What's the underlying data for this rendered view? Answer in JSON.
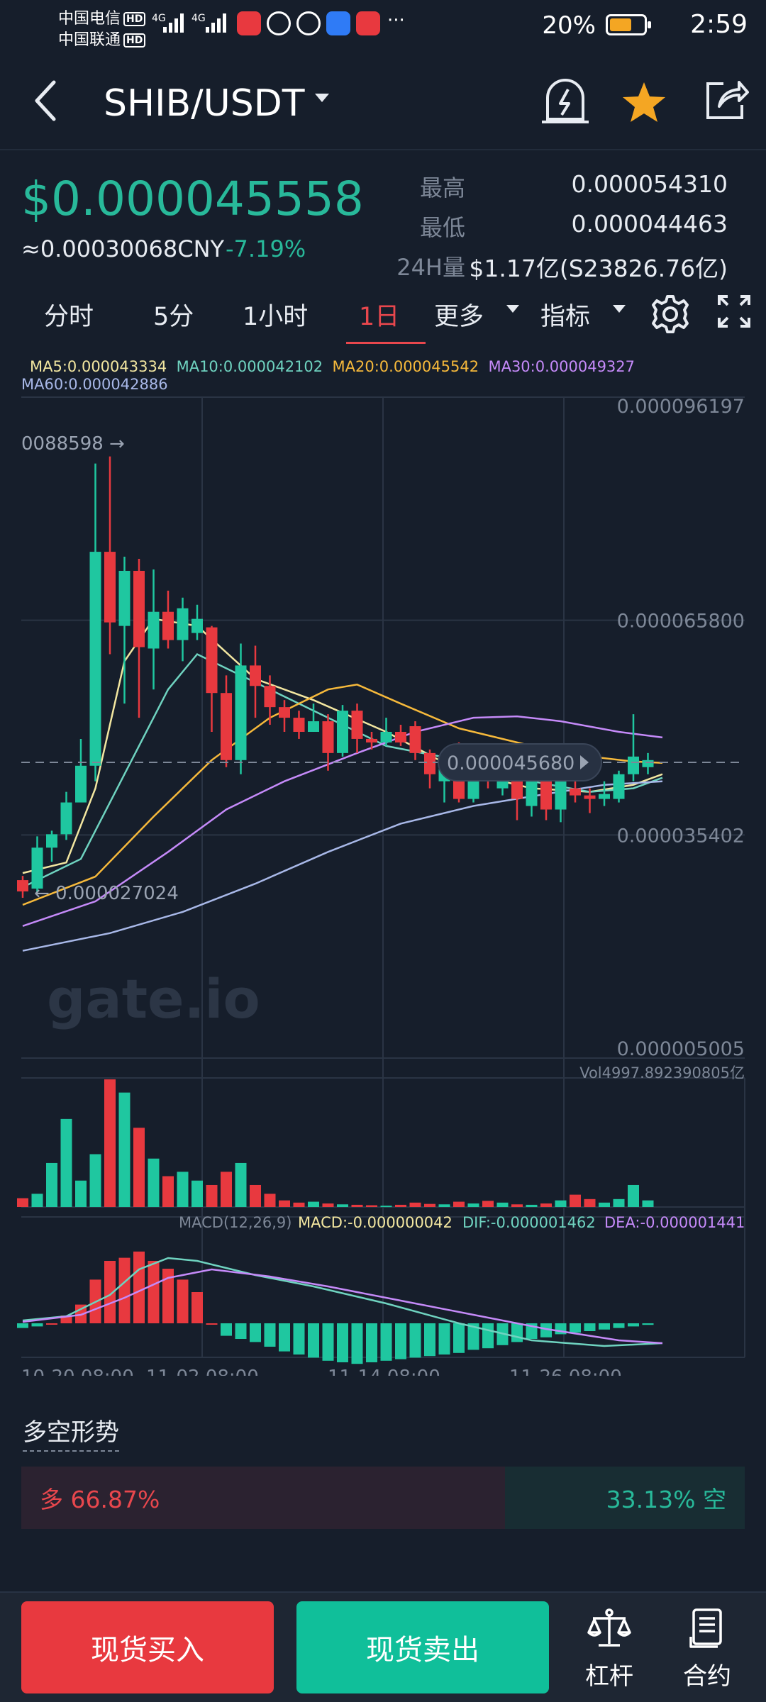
{
  "status_bar": {
    "carrier1": "中国电信",
    "carrier2": "中国联通",
    "hd": "HD",
    "network": "4G",
    "more": "···",
    "battery": "20%",
    "time": "2:59"
  },
  "header": {
    "pair": "SHIB/USDT",
    "icons": [
      "back-icon",
      "price-alert-icon",
      "favorite-star-icon",
      "share-icon"
    ],
    "star_color": "#f4a623"
  },
  "price": {
    "last": "$0.000045558",
    "cny": "≈0.00030068CNY",
    "change": "-7.19%",
    "stats": [
      {
        "label": "最高",
        "value": "0.000054310"
      },
      {
        "label": "最低",
        "value": "0.000044463"
      },
      {
        "label": "24H量",
        "value": "$1.17亿(S23826.76亿)"
      }
    ]
  },
  "tabs": [
    {
      "label": "分时",
      "active": false
    },
    {
      "label": "5分",
      "active": false
    },
    {
      "label": "1小时",
      "active": false
    },
    {
      "label": "1日",
      "active": true
    },
    {
      "label": "更多",
      "active": false
    },
    {
      "label": "指标",
      "active": false
    }
  ],
  "indicators": {
    "ma5": "MA5:0.000043334",
    "ma10": "MA10:0.000042102",
    "ma20": "MA20:0.000045542",
    "ma30": "MA30:0.000049327",
    "ma60": "MA60:0.000042886",
    "vol": "Vol4997.892390805亿",
    "macd_params": "MACD(12,26,9)",
    "macd": "MACD:-0.000000042",
    "dif": "DIF:-0.000001462",
    "dea": "DEA:-0.000001441",
    "colors": {
      "ma5": "#f2e6a0",
      "ma10": "#6fd3c0",
      "ma20": "#f6b93b",
      "ma30": "#c58af9",
      "ma60": "#a8b8e8"
    }
  },
  "chart_data": {
    "type": "candlestick",
    "y_axis_labels": [
      "0.000096197",
      "0.000065800",
      "0.000035402",
      "0.000005005"
    ],
    "ylim": [
      5.005e-06,
      9.6197e-05
    ],
    "x_axis_labels": [
      "10-20 08:00",
      "11-02 08:00",
      "11-14 08:00",
      "11-26 08:00"
    ],
    "high_marker": "0.000088598",
    "low_marker": "0.000027024",
    "current_price_label": "0.000045680",
    "watermark": "gate.io",
    "up_color": "#1fc7a0",
    "down_color": "#e8393f",
    "candles": [
      {
        "o": 2.9e-05,
        "c": 2.74e-05,
        "h": 2.96e-05,
        "l": 2.65e-05
      },
      {
        "o": 2.78e-05,
        "c": 3.36e-05,
        "h": 3.52e-05,
        "l": 2.7e-05
      },
      {
        "o": 3.36e-05,
        "c": 3.55e-05,
        "h": 3.6e-05,
        "l": 3.16e-05
      },
      {
        "o": 3.55e-05,
        "c": 4e-05,
        "h": 4.15e-05,
        "l": 3.47e-05
      },
      {
        "o": 4e-05,
        "c": 4.52e-05,
        "h": 4.9e-05,
        "l": 4e-05
      },
      {
        "o": 4.52e-05,
        "c": 7.55e-05,
        "h": 8.8e-05,
        "l": 4.3e-05
      },
      {
        "o": 7.55e-05,
        "c": 6.55e-05,
        "h": 8.9e-05,
        "l": 6.1e-05
      },
      {
        "o": 6.5e-05,
        "c": 7.28e-05,
        "h": 7.48e-05,
        "l": 5.4e-05
      },
      {
        "o": 7.28e-05,
        "c": 6.2e-05,
        "h": 7.45e-05,
        "l": 5.2e-05
      },
      {
        "o": 6.18e-05,
        "c": 6.7e-05,
        "h": 7.3e-05,
        "l": 5.6e-05
      },
      {
        "o": 6.7e-05,
        "c": 6.3e-05,
        "h": 7e-05,
        "l": 6.18e-05
      },
      {
        "o": 6.3e-05,
        "c": 6.75e-05,
        "h": 6.9e-05,
        "l": 6e-05
      },
      {
        "o": 6.4e-05,
        "c": 6.6e-05,
        "h": 6.8e-05,
        "l": 6.3e-05
      },
      {
        "o": 6.48e-05,
        "c": 5.55e-05,
        "h": 6.5e-05,
        "l": 5e-05
      },
      {
        "o": 5.55e-05,
        "c": 4.6e-05,
        "h": 5.8e-05,
        "l": 4.5e-05
      },
      {
        "o": 4.6e-05,
        "c": 5.94e-05,
        "h": 6.25e-05,
        "l": 4.4e-05
      },
      {
        "o": 5.94e-05,
        "c": 5.65e-05,
        "h": 6.22e-05,
        "l": 5.2e-05
      },
      {
        "o": 5.65e-05,
        "c": 5.35e-05,
        "h": 5.8e-05,
        "l": 5.1e-05
      },
      {
        "o": 5.35e-05,
        "c": 5.2e-05,
        "h": 5.45e-05,
        "l": 5e-05
      },
      {
        "o": 5.2e-05,
        "c": 5e-05,
        "h": 5.3e-05,
        "l": 4.9e-05
      },
      {
        "o": 5e-05,
        "c": 5.15e-05,
        "h": 5.4e-05,
        "l": 5e-05
      },
      {
        "o": 5.15e-05,
        "c": 4.7e-05,
        "h": 5.25e-05,
        "l": 4.45e-05
      },
      {
        "o": 4.7e-05,
        "c": 5.3e-05,
        "h": 5.38e-05,
        "l": 4.65e-05
      },
      {
        "o": 5.3e-05,
        "c": 4.9e-05,
        "h": 5.4e-05,
        "l": 4.7e-05
      },
      {
        "o": 4.9e-05,
        "c": 4.85e-05,
        "h": 5e-05,
        "l": 4.75e-05
      },
      {
        "o": 4.85e-05,
        "c": 5e-05,
        "h": 5.2e-05,
        "l": 4.8e-05
      },
      {
        "o": 5e-05,
        "c": 4.85e-05,
        "h": 5.1e-05,
        "l": 4.8e-05
      },
      {
        "o": 5.08e-05,
        "c": 4.7e-05,
        "h": 5.15e-05,
        "l": 4.6e-05
      },
      {
        "o": 4.7e-05,
        "c": 4.4e-05,
        "h": 4.75e-05,
        "l": 4.2e-05
      },
      {
        "o": 4.3e-05,
        "c": 4.55e-05,
        "h": 4.6e-05,
        "l": 4e-05
      },
      {
        "o": 4.55e-05,
        "c": 4.05e-05,
        "h": 4.85e-05,
        "l": 4e-05
      },
      {
        "o": 4.05e-05,
        "c": 4.45e-05,
        "h": 4.6e-05,
        "l": 4e-05
      },
      {
        "o": 4.45e-05,
        "c": 4.35e-05,
        "h": 4.55e-05,
        "l": 4.2e-05
      },
      {
        "o": 4.2e-05,
        "c": 4.4e-05,
        "h": 4.5e-05,
        "l": 4.1e-05
      },
      {
        "o": 4.4e-05,
        "c": 4.05e-05,
        "h": 4.45e-05,
        "l": 3.75e-05
      },
      {
        "o": 3.95e-05,
        "c": 4.3e-05,
        "h": 4.4e-05,
        "l": 3.8e-05
      },
      {
        "o": 4.35e-05,
        "c": 3.9e-05,
        "h": 4.45e-05,
        "l": 3.75e-05
      },
      {
        "o": 3.9e-05,
        "c": 4.32e-05,
        "h": 4.4e-05,
        "l": 3.72e-05
      },
      {
        "o": 4.2e-05,
        "c": 4.1e-05,
        "h": 4.3e-05,
        "l": 4e-05
      },
      {
        "o": 4.1e-05,
        "c": 4.05e-05,
        "h": 4.2e-05,
        "l": 3.85e-05
      },
      {
        "o": 4.05e-05,
        "c": 4.12e-05,
        "h": 4.3e-05,
        "l": 3.95e-05
      },
      {
        "o": 4.05e-05,
        "c": 4.4e-05,
        "h": 4.45e-05,
        "l": 4e-05
      },
      {
        "o": 4.4e-05,
        "c": 4.65e-05,
        "h": 5.25e-05,
        "l": 4.3e-05
      },
      {
        "o": 4.5e-05,
        "c": 4.6e-05,
        "h": 4.7e-05,
        "l": 4.4e-05
      }
    ],
    "ma": {
      "ma5": [
        [
          0,
          3e-05
        ],
        [
          3,
          3.15e-05
        ],
        [
          5,
          4.2e-05
        ],
        [
          7,
          6e-05
        ],
        [
          9,
          6.6e-05
        ],
        [
          12,
          6.5e-05
        ],
        [
          16,
          5.75e-05
        ],
        [
          20,
          5.45e-05
        ],
        [
          25,
          5e-05
        ],
        [
          30,
          4.45e-05
        ],
        [
          35,
          4.2e-05
        ],
        [
          39,
          4.15e-05
        ],
        [
          42,
          4.25e-05
        ],
        [
          44,
          4.4e-05
        ]
      ],
      "ma10": [
        [
          0,
          2.8e-05
        ],
        [
          4,
          3.2e-05
        ],
        [
          7,
          4.4e-05
        ],
        [
          10,
          5.6e-05
        ],
        [
          12,
          6.1e-05
        ],
        [
          16,
          5.7e-05
        ],
        [
          20,
          5.3e-05
        ],
        [
          25,
          4.8e-05
        ],
        [
          30,
          4.6e-05
        ],
        [
          35,
          4.3e-05
        ],
        [
          39,
          4.15e-05
        ],
        [
          42,
          4.2e-05
        ],
        [
          44,
          4.35e-05
        ]
      ],
      "ma20": [
        [
          0,
          2.55e-05
        ],
        [
          5,
          2.95e-05
        ],
        [
          9,
          3.8e-05
        ],
        [
          13,
          4.6e-05
        ],
        [
          17,
          5.2e-05
        ],
        [
          21,
          5.6e-05
        ],
        [
          23,
          5.67e-05
        ],
        [
          26,
          5.4e-05
        ],
        [
          30,
          5.05e-05
        ],
        [
          35,
          4.8e-05
        ],
        [
          39,
          4.65e-05
        ],
        [
          42,
          4.58e-05
        ],
        [
          44,
          4.56e-05
        ]
      ],
      "ma30": [
        [
          0,
          2.25e-05
        ],
        [
          5,
          2.6e-05
        ],
        [
          10,
          3.3e-05
        ],
        [
          14,
          3.9e-05
        ],
        [
          18,
          4.3e-05
        ],
        [
          23,
          4.7e-05
        ],
        [
          27,
          5e-05
        ],
        [
          31,
          5.2e-05
        ],
        [
          34,
          5.22e-05
        ],
        [
          37,
          5.15e-05
        ],
        [
          41,
          5e-05
        ],
        [
          44,
          4.92e-05
        ]
      ],
      "ma60": [
        [
          0,
          1.9e-05
        ],
        [
          6,
          2.15e-05
        ],
        [
          11,
          2.45e-05
        ],
        [
          16,
          2.85e-05
        ],
        [
          21,
          3.3e-05
        ],
        [
          26,
          3.7e-05
        ],
        [
          31,
          3.95e-05
        ],
        [
          36,
          4.12e-05
        ],
        [
          40,
          4.25e-05
        ],
        [
          44,
          4.3e-05
        ]
      ]
    },
    "volume": [
      2,
      3,
      10,
      20,
      6,
      12,
      29,
      26,
      18,
      11,
      7,
      8,
      6,
      5,
      8,
      10,
      5,
      3,
      1.5,
      1,
      1.2,
      0.8,
      0.6,
      0.5,
      0.4,
      0.3,
      0.5,
      1,
      0.7,
      0.6,
      1.2,
      0.8,
      1.4,
      1,
      0.6,
      0.5,
      0.8,
      1.5,
      2.8,
      1.8,
      1,
      1.8,
      5,
      1.5
    ],
    "macd_hist": [
      -0.3,
      -0.2,
      0,
      0.5,
      1.2,
      2.8,
      4,
      4.2,
      4.6,
      4,
      3.5,
      2.8,
      2,
      0,
      -0.8,
      -1,
      -1.2,
      -1.5,
      -1.8,
      -2,
      -2.2,
      -2.4,
      -2.5,
      -2.6,
      -2.5,
      -2.4,
      -2.3,
      -2.2,
      -2.1,
      -2,
      -1.9,
      -1.7,
      -1.6,
      -1.4,
      -1.2,
      -1,
      -0.9,
      -0.7,
      -0.6,
      -0.5,
      -0.4,
      -0.3,
      -0.2,
      -0.1
    ],
    "dif": [
      [
        0,
        0.2
      ],
      [
        3,
        0.5
      ],
      [
        6,
        2
      ],
      [
        8,
        3.8
      ],
      [
        10,
        4.6
      ],
      [
        12,
        4.4
      ],
      [
        16,
        3.4
      ],
      [
        20,
        2.6
      ],
      [
        25,
        1.4
      ],
      [
        30,
        0
      ],
      [
        35,
        -1.2
      ],
      [
        40,
        -1.6
      ],
      [
        44,
        -1.4
      ]
    ],
    "dea": [
      [
        0,
        0.1
      ],
      [
        4,
        0.6
      ],
      [
        7,
        1.8
      ],
      [
        10,
        3.2
      ],
      [
        13,
        3.8
      ],
      [
        17,
        3.3
      ],
      [
        21,
        2.6
      ],
      [
        26,
        1.6
      ],
      [
        31,
        0.6
      ],
      [
        36,
        -0.4
      ],
      [
        41,
        -1.2
      ],
      [
        44,
        -1.4
      ]
    ]
  },
  "trend": {
    "title": "多空形势",
    "long_label": "多 66.87%",
    "short_label": "33.13% 空",
    "long_pct": 66.87
  },
  "bottom": {
    "buy": "现货买入",
    "sell": "现货卖出",
    "leverage": "杠杆",
    "contract": "合约"
  }
}
